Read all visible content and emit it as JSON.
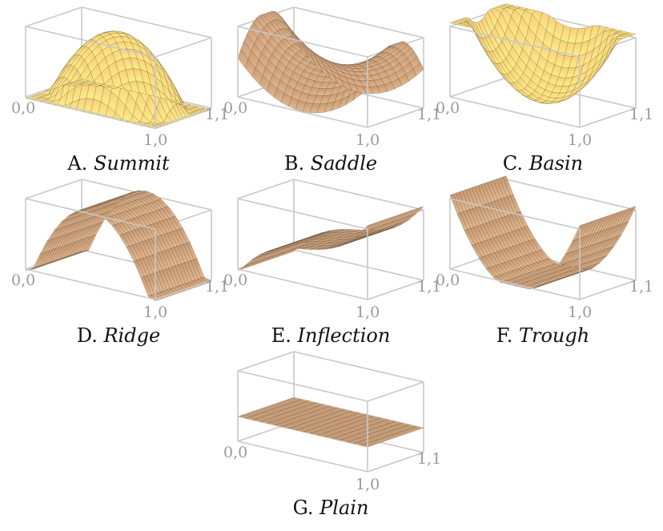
{
  "panels": [
    {
      "letter": "A.",
      "label": "Summit",
      "surface": "summit"
    },
    {
      "letter": "B.",
      "label": "Saddle",
      "surface": "saddle"
    },
    {
      "letter": "C.",
      "label": "Basin",
      "surface": "basin"
    },
    {
      "letter": "D.",
      "label": "Ridge",
      "surface": "ridge"
    },
    {
      "letter": "E.",
      "label": "Inflection",
      "surface": "inflection"
    },
    {
      "letter": "F.",
      "label": "Trough",
      "surface": "trough"
    },
    {
      "letter": "G.",
      "label": "Plain",
      "surface": "plain"
    }
  ],
  "ticks": {
    "origin": "0,0",
    "x_end": "1,0",
    "corner": "1,1"
  },
  "colors": {
    "box": "#c8c8c8",
    "tick": "#9a9a9a",
    "mesh": "#3a2a1a",
    "bright_top": "#f6cf7a",
    "bright_bottom": "#ffee88",
    "muted": "#c89a72"
  }
}
